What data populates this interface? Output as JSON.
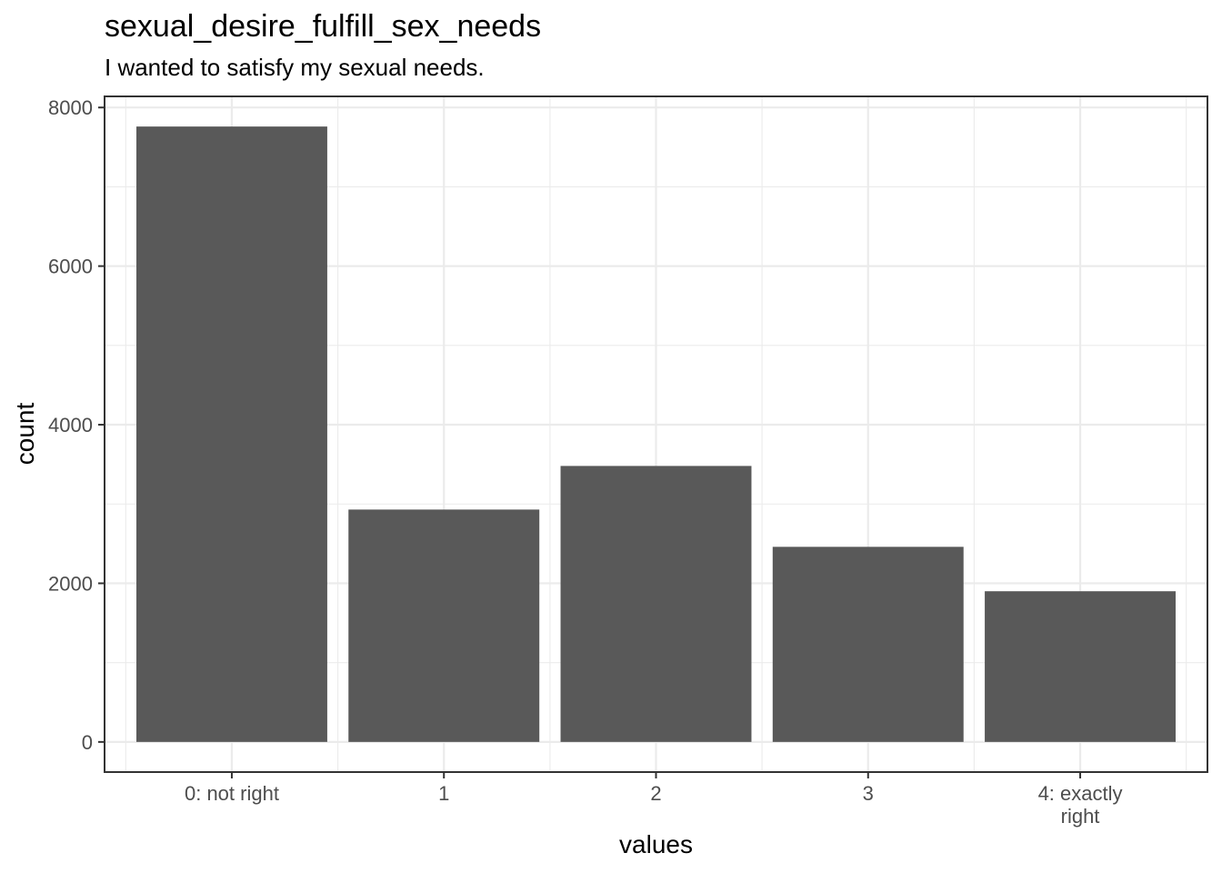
{
  "chart_data": {
    "type": "bar",
    "title": "sexual_desire_fulfill_sex_needs",
    "subtitle": "I wanted to satisfy my sexual needs.",
    "xlabel": "values",
    "ylabel": "count",
    "categories": [
      "0: not right",
      "1",
      "2",
      "3",
      "4: exactly right"
    ],
    "category_lines": [
      [
        "0: not right"
      ],
      [
        "1"
      ],
      [
        "2"
      ],
      [
        "3"
      ],
      [
        "4: exactly",
        "right"
      ]
    ],
    "values": [
      7760,
      2930,
      3480,
      2460,
      1900
    ],
    "ylim": [
      -380,
      8140
    ],
    "yticks": [
      0,
      2000,
      4000,
      6000,
      8000
    ],
    "ytick_labels": [
      "0",
      "2000",
      "4000",
      "6000",
      "8000"
    ],
    "grid": true,
    "legend": "none",
    "bar_color": "#595959",
    "grid_color": "#ebebeb",
    "panel_border_color": "#333333"
  }
}
